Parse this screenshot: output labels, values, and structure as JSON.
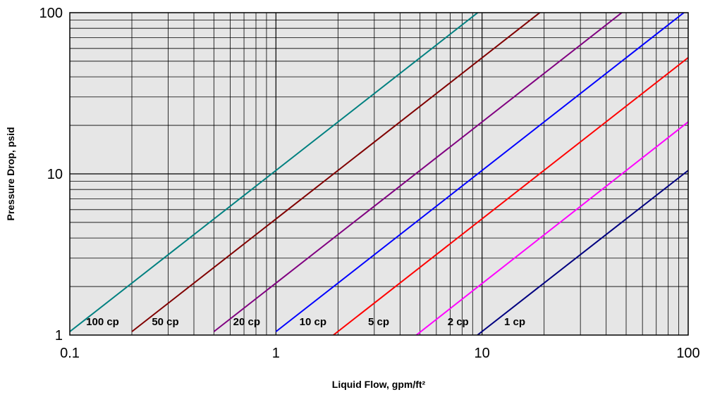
{
  "chart_data": {
    "type": "line",
    "xscale": "log",
    "yscale": "log",
    "xlim": [
      0.1,
      100
    ],
    "ylim": [
      1,
      100
    ],
    "xlabel": "Liquid Flow, gpm/ft²",
    "ylabel": "Pressure Drop, psid",
    "x_ticks": [
      "0.1",
      "1",
      "10",
      "100"
    ],
    "y_ticks": [
      "1",
      "10",
      "100"
    ],
    "grid": true,
    "background": "#e6e6e6",
    "series": [
      {
        "name": "100 cp",
        "color": "#008080",
        "x": [
          0.1,
          10
        ],
        "y": [
          1.05,
          105
        ]
      },
      {
        "name": "50 cp",
        "color": "#800000",
        "x": [
          0.2,
          20
        ],
        "y": [
          1.05,
          105
        ]
      },
      {
        "name": "20 cp",
        "color": "#800080",
        "x": [
          0.5,
          50
        ],
        "y": [
          1.05,
          105
        ]
      },
      {
        "name": "10 cp",
        "color": "#0000ff",
        "x": [
          1,
          100
        ],
        "y": [
          1.05,
          105
        ]
      },
      {
        "name": "5 cp",
        "color": "#ff0000",
        "x": [
          1.9,
          100
        ],
        "y": [
          1.0,
          52.6
        ]
      },
      {
        "name": "2 cp",
        "color": "#ff00ff",
        "x": [
          4.8,
          100
        ],
        "y": [
          1.0,
          21.0
        ]
      },
      {
        "name": "1 cp",
        "color": "#000080",
        "x": [
          9.5,
          100
        ],
        "y": [
          1.0,
          10.5
        ]
      }
    ],
    "labels": [
      {
        "text": "100 cp",
        "x": 0.12,
        "y": 1.15
      },
      {
        "text": "50 cp",
        "x": 0.25,
        "y": 1.15
      },
      {
        "text": "20 cp",
        "x": 0.62,
        "y": 1.15
      },
      {
        "text": "10 cp",
        "x": 1.3,
        "y": 1.15
      },
      {
        "text": "5 cp",
        "x": 2.8,
        "y": 1.15
      },
      {
        "text": "2 cp",
        "x": 6.8,
        "y": 1.15
      },
      {
        "text": "1 cp",
        "x": 12.8,
        "y": 1.15
      }
    ]
  }
}
